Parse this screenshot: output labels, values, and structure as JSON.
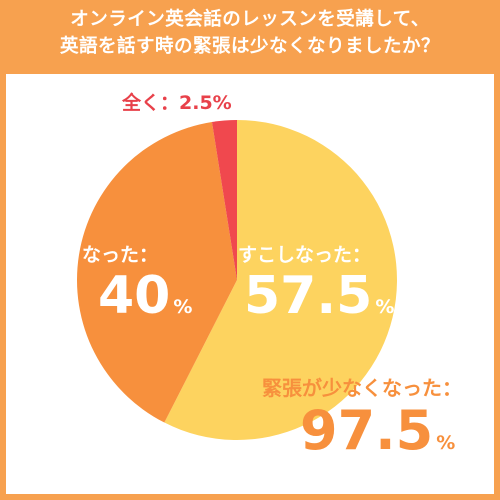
{
  "header": {
    "line1": "オンライン英会話のレッスンを受講して、",
    "line2": "英語を話す時の緊張は少なくなりましたか？"
  },
  "chart_data": {
    "type": "pie",
    "title": "オンライン英会話のレッスンを受講して、英語を話す時の緊張は少なくなりましたか？",
    "slices": [
      {
        "label": "すこしなった",
        "value": 57.5,
        "color": "#fdd35f"
      },
      {
        "label": "なった",
        "value": 40,
        "color": "#f7903d"
      },
      {
        "label": "全く",
        "value": 2.5,
        "color": "#f0484e"
      }
    ],
    "annotation": {
      "label": "緊張が少なくなった",
      "value": 97.5
    }
  },
  "labels": {
    "zen": "全く：2.5%",
    "natta": "なった：",
    "natta_value": "40",
    "sukoshi": "すこしなった：",
    "sukoshi_value": "57.5",
    "percent": "%",
    "total": "緊張が少なくなった：",
    "total_value": "97.5"
  }
}
